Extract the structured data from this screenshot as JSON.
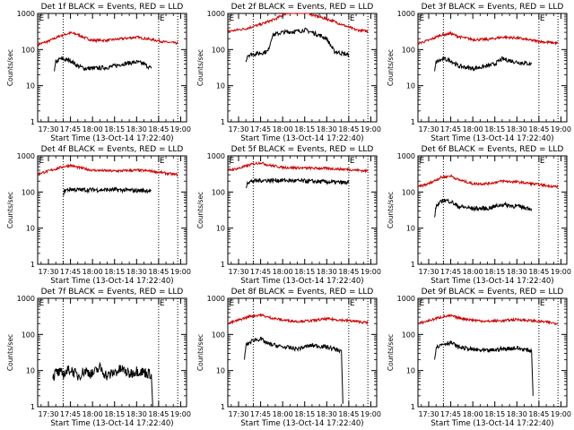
{
  "chart_data": [
    {
      "type": "line",
      "title": "Det 1f BLACK = Events, RED = LLD",
      "xlabel": "Start Time (13-Oct-14 17:22:40)",
      "ylabel": "Counts/sec",
      "yscale": "log",
      "ylim": [
        1,
        1000
      ],
      "yticks": [
        "1",
        "10",
        "100",
        "1000"
      ],
      "xlim": [
        "17:22:40",
        "19:04:00"
      ],
      "xticks": [
        "17:30",
        "17:45",
        "18:00",
        "18:15",
        "18:30",
        "18:45",
        "19:00"
      ],
      "vlines": [
        "17:40",
        "18:45",
        "18:58"
      ],
      "markers": [
        {
          "label": "E",
          "time": "17:23"
        },
        {
          "label": "E",
          "time": "18:45"
        }
      ],
      "series": [
        {
          "color": "#d00000",
          "time": [
            "17:23",
            "17:30",
            "17:38",
            "17:45",
            "17:50",
            "17:55",
            "18:00",
            "18:10",
            "18:20",
            "18:30",
            "18:40",
            "18:50",
            "18:58"
          ],
          "values": [
            140,
            170,
            240,
            290,
            260,
            210,
            180,
            180,
            200,
            220,
            190,
            160,
            150
          ]
        },
        {
          "color": "#000000",
          "time": [
            "17:34",
            "17:35",
            "17:38",
            "17:45",
            "17:50",
            "17:55",
            "18:00",
            "18:10",
            "18:15",
            "18:20",
            "18:30",
            "18:35",
            "18:40"
          ],
          "values": [
            25,
            45,
            55,
            50,
            35,
            30,
            30,
            32,
            35,
            40,
            45,
            40,
            30
          ]
        }
      ]
    },
    {
      "type": "line",
      "title": "Det 2f BLACK = Events, RED = LLD",
      "xlabel": "Start Time (13-Oct-14 17:22:40)",
      "ylabel": "Counts/sec",
      "yscale": "log",
      "ylim": [
        1,
        1000
      ],
      "yticks": [
        "1",
        "10",
        "100",
        "1000"
      ],
      "xlim": [
        "17:22:40",
        "19:04:00"
      ],
      "xticks": [
        "17:30",
        "17:45",
        "18:00",
        "18:15",
        "18:30",
        "18:45",
        "19:00"
      ],
      "vlines": [
        "17:40",
        "18:45",
        "18:58"
      ],
      "markers": [
        {
          "label": "E",
          "time": "17:23"
        },
        {
          "label": "E",
          "time": "18:45"
        }
      ],
      "series": [
        {
          "color": "#d00000",
          "time": [
            "17:23",
            "17:35",
            "17:45",
            "17:55",
            "18:00",
            "18:05",
            "18:10",
            "18:15",
            "18:20",
            "18:25",
            "18:30",
            "18:35",
            "18:40",
            "18:50",
            "18:58"
          ],
          "values": [
            320,
            380,
            500,
            700,
            900,
            1100,
            1050,
            1200,
            900,
            800,
            700,
            600,
            500,
            350,
            320
          ]
        },
        {
          "color": "#000000",
          "time": [
            "17:35",
            "17:36",
            "17:40",
            "17:45",
            "17:50",
            "17:53",
            "18:00",
            "18:10",
            "18:15",
            "18:20",
            "18:25",
            "18:30",
            "18:35",
            "18:45"
          ],
          "values": [
            45,
            70,
            75,
            80,
            90,
            250,
            300,
            320,
            350,
            300,
            250,
            200,
            90,
            70
          ]
        }
      ]
    },
    {
      "type": "line",
      "title": "Det 3f BLACK = Events, RED = LLD",
      "xlabel": "Start Time (13-Oct-14 17:22:40)",
      "ylabel": "Counts/sec",
      "yscale": "log",
      "ylim": [
        1,
        1000
      ],
      "yticks": [
        "1",
        "10",
        "100",
        "1000"
      ],
      "xlim": [
        "17:22:40",
        "19:04:00"
      ],
      "xticks": [
        "17:30",
        "17:45",
        "18:00",
        "18:15",
        "18:30",
        "18:45",
        "19:00"
      ],
      "vlines": [
        "17:40",
        "18:45",
        "18:58"
      ],
      "markers": [
        {
          "label": "E",
          "time": "17:23"
        },
        {
          "label": "E",
          "time": "18:45"
        }
      ],
      "series": [
        {
          "color": "#d00000",
          "time": [
            "17:23",
            "17:30",
            "17:38",
            "17:45",
            "17:50",
            "18:00",
            "18:10",
            "18:20",
            "18:30",
            "18:40",
            "18:50",
            "18:58"
          ],
          "values": [
            150,
            180,
            250,
            280,
            230,
            190,
            190,
            220,
            210,
            180,
            160,
            150
          ]
        },
        {
          "color": "#000000",
          "time": [
            "17:34",
            "17:35",
            "17:40",
            "17:45",
            "17:50",
            "18:00",
            "18:10",
            "18:15",
            "18:20",
            "18:30",
            "18:40"
          ],
          "values": [
            25,
            45,
            55,
            50,
            35,
            30,
            35,
            40,
            55,
            45,
            40
          ]
        }
      ]
    },
    {
      "type": "line",
      "title": "Det 4f BLACK = Events, RED = LLD",
      "xlabel": "Start Time (13-Oct-14 17:22:40)",
      "ylabel": "Counts/sec",
      "yscale": "log",
      "ylim": [
        1,
        1000
      ],
      "yticks": [
        "1",
        "10",
        "100",
        "1000"
      ],
      "xlim": [
        "17:22:40",
        "19:04:00"
      ],
      "xticks": [
        "17:30",
        "17:45",
        "18:00",
        "18:15",
        "18:30",
        "18:45",
        "19:00"
      ],
      "vlines": [
        "17:40",
        "18:45",
        "18:58"
      ],
      "markers": [
        {
          "label": "E",
          "time": "17:23"
        },
        {
          "label": "E",
          "time": "18:45"
        }
      ],
      "series": [
        {
          "color": "#d00000",
          "time": [
            "17:23",
            "17:30",
            "17:40",
            "17:45",
            "17:50",
            "18:00",
            "18:15",
            "18:30",
            "18:40",
            "18:50",
            "18:58"
          ],
          "values": [
            320,
            380,
            500,
            550,
            480,
            400,
            380,
            400,
            380,
            330,
            300
          ]
        },
        {
          "color": "#000000",
          "time": [
            "17:40",
            "17:41",
            "17:45",
            "17:50",
            "18:00",
            "18:15",
            "18:30",
            "18:40"
          ],
          "values": [
            80,
            110,
            120,
            115,
            115,
            115,
            110,
            110
          ]
        }
      ]
    },
    {
      "type": "line",
      "title": "Det 5f BLACK = Events, RED = LLD",
      "xlabel": "Start Time (13-Oct-14 17:22:40)",
      "ylabel": "Counts/sec",
      "yscale": "log",
      "ylim": [
        1,
        1000
      ],
      "yticks": [
        "1",
        "10",
        "100",
        "1000"
      ],
      "xlim": [
        "17:22:40",
        "19:04:00"
      ],
      "xticks": [
        "17:30",
        "17:45",
        "18:00",
        "18:15",
        "18:30",
        "18:45",
        "19:00"
      ],
      "vlines": [
        "17:40",
        "18:45",
        "18:58"
      ],
      "markers": [
        {
          "label": "E",
          "time": "17:23"
        },
        {
          "label": "E",
          "time": "18:45"
        }
      ],
      "series": [
        {
          "color": "#d00000",
          "time": [
            "17:23",
            "17:30",
            "17:40",
            "17:45",
            "17:50",
            "18:00",
            "18:15",
            "18:30",
            "18:45",
            "18:58"
          ],
          "values": [
            400,
            450,
            600,
            650,
            560,
            480,
            460,
            450,
            420,
            380
          ]
        },
        {
          "color": "#000000",
          "time": [
            "17:35",
            "17:36",
            "17:45",
            "18:00",
            "18:15",
            "18:30",
            "18:45"
          ],
          "values": [
            130,
            190,
            210,
            210,
            200,
            190,
            180
          ]
        }
      ]
    },
    {
      "type": "line",
      "title": "Det 6f BLACK = Events, RED = LLD",
      "xlabel": "Start Time (13-Oct-14 17:22:40)",
      "ylabel": "Counts/sec",
      "yscale": "log",
      "ylim": [
        1,
        1000
      ],
      "yticks": [
        "1",
        "10",
        "100",
        "1000"
      ],
      "xlim": [
        "17:22:40",
        "19:04:00"
      ],
      "xticks": [
        "17:30",
        "17:45",
        "18:00",
        "18:15",
        "18:30",
        "18:45",
        "19:00"
      ],
      "vlines": [
        "17:40",
        "18:45",
        "18:58"
      ],
      "markers": [
        {
          "label": "E",
          "time": "17:23"
        },
        {
          "label": "E",
          "time": "18:45"
        }
      ],
      "series": [
        {
          "color": "#d00000",
          "time": [
            "17:23",
            "17:30",
            "17:38",
            "17:45",
            "17:50",
            "18:00",
            "18:10",
            "18:20",
            "18:30",
            "18:40",
            "18:50",
            "18:58"
          ],
          "values": [
            140,
            170,
            250,
            280,
            220,
            170,
            170,
            200,
            190,
            170,
            150,
            140
          ]
        },
        {
          "color": "#000000",
          "time": [
            "17:34",
            "17:35",
            "17:40",
            "17:45",
            "17:50",
            "18:00",
            "18:10",
            "18:20",
            "18:30",
            "18:40"
          ],
          "values": [
            20,
            40,
            60,
            55,
            40,
            35,
            35,
            45,
            40,
            35
          ]
        }
      ]
    },
    {
      "type": "line",
      "title": "Det 7f BLACK = Events, RED = LLD",
      "xlabel": "Start Time (13-Oct-14 17:22:40)",
      "ylabel": "Counts/sec",
      "yscale": "log",
      "ylim": [
        1,
        1000
      ],
      "yticks": [
        "1",
        "10",
        "100",
        "1000"
      ],
      "xlim": [
        "17:22:40",
        "19:04:00"
      ],
      "xticks": [
        "17:30",
        "17:45",
        "18:00",
        "18:15",
        "18:30",
        "18:45",
        "19:00"
      ],
      "vlines": [
        "17:40",
        "18:45",
        "18:58"
      ],
      "markers": [
        {
          "label": "E",
          "time": "17:23"
        },
        {
          "label": "E",
          "time": "18:45"
        }
      ],
      "series": [
        {
          "color": "#000000",
          "time": [
            "17:33",
            "17:35",
            "17:40",
            "17:45",
            "17:50",
            "17:55",
            "18:00",
            "18:05",
            "18:10",
            "18:15",
            "18:20",
            "18:25",
            "18:30",
            "18:35",
            "18:40",
            "18:41"
          ],
          "values": [
            6,
            9,
            8,
            11,
            7,
            10,
            8,
            12,
            7,
            9,
            11,
            8,
            10,
            9,
            8,
            1
          ]
        }
      ]
    },
    {
      "type": "line",
      "title": "Det 8f BLACK = Events, RED = LLD",
      "xlabel": "Start Time (13-Oct-14 17:22:40)",
      "ylabel": "Counts/sec",
      "yscale": "log",
      "ylim": [
        1,
        1000
      ],
      "yticks": [
        "1",
        "10",
        "100",
        "1000"
      ],
      "xlim": [
        "17:22:40",
        "19:04:00"
      ],
      "xticks": [
        "17:30",
        "17:45",
        "18:00",
        "18:15",
        "18:30",
        "18:45",
        "19:00"
      ],
      "vlines": [
        "17:40",
        "18:45",
        "18:58"
      ],
      "markers": [
        {
          "label": "E",
          "time": "17:23"
        },
        {
          "label": "E",
          "time": "18:45"
        }
      ],
      "series": [
        {
          "color": "#d00000",
          "time": [
            "17:23",
            "17:30",
            "17:38",
            "17:45",
            "17:50",
            "18:00",
            "18:10",
            "18:20",
            "18:30",
            "18:40",
            "18:50",
            "18:58"
          ],
          "values": [
            200,
            250,
            320,
            350,
            300,
            250,
            230,
            240,
            270,
            250,
            230,
            210
          ]
        },
        {
          "color": "#000000",
          "time": [
            "17:34",
            "17:35",
            "17:40",
            "17:45",
            "17:50",
            "18:00",
            "18:10",
            "18:20",
            "18:30",
            "18:40",
            "18:41"
          ],
          "values": [
            20,
            50,
            70,
            75,
            55,
            45,
            40,
            50,
            45,
            35,
            1.2
          ]
        }
      ]
    },
    {
      "type": "line",
      "title": "Det 9f BLACK = Events, RED = LLD",
      "xlabel": "Start Time (13-Oct-14 17:22:40)",
      "ylabel": "Counts/sec",
      "yscale": "log",
      "ylim": [
        1,
        1000
      ],
      "yticks": [
        "1",
        "10",
        "100",
        "1000"
      ],
      "xlim": [
        "17:22:40",
        "19:04:00"
      ],
      "xticks": [
        "17:30",
        "17:45",
        "18:00",
        "18:15",
        "18:30",
        "18:45",
        "19:00"
      ],
      "vlines": [
        "17:40",
        "18:45",
        "18:58"
      ],
      "markers": [
        {
          "label": "E",
          "time": "17:23"
        },
        {
          "label": "E",
          "time": "18:45"
        }
      ],
      "series": [
        {
          "color": "#d00000",
          "time": [
            "17:23",
            "17:30",
            "17:38",
            "17:45",
            "17:50",
            "18:00",
            "18:10",
            "18:20",
            "18:30",
            "18:40",
            "18:50",
            "18:58"
          ],
          "values": [
            200,
            240,
            300,
            330,
            290,
            250,
            230,
            240,
            260,
            240,
            220,
            200
          ]
        },
        {
          "color": "#000000",
          "time": [
            "17:34",
            "17:35",
            "17:40",
            "17:45",
            "17:50",
            "18:00",
            "18:10",
            "18:20",
            "18:30",
            "18:40",
            "18:41"
          ],
          "values": [
            20,
            45,
            55,
            60,
            45,
            38,
            35,
            40,
            42,
            35,
            2
          ]
        }
      ]
    }
  ]
}
